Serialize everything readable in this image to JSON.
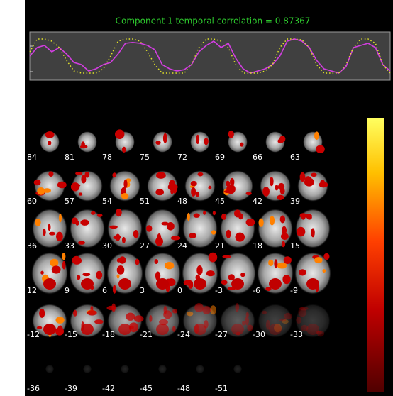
{
  "title": "Component 1 temporal correlation = 0.87367",
  "timecourse": {
    "ylim": [
      0,
      1
    ],
    "series": [
      {
        "color": "#d23ee0",
        "style": "solid",
        "values": [
          0.5,
          0.7,
          0.75,
          0.6,
          0.7,
          0.55,
          0.35,
          0.3,
          0.15,
          0.2,
          0.3,
          0.35,
          0.55,
          0.8,
          0.82,
          0.8,
          0.75,
          0.65,
          0.3,
          0.2,
          0.15,
          0.18,
          0.3,
          0.6,
          0.75,
          0.85,
          0.7,
          0.8,
          0.45,
          0.2,
          0.1,
          0.15,
          0.2,
          0.3,
          0.5,
          0.85,
          0.9,
          0.85,
          0.7,
          0.4,
          0.2,
          0.15,
          0.1,
          0.25,
          0.7,
          0.75,
          0.8,
          0.7,
          0.3,
          0.15
        ]
      },
      {
        "color": "#e4e428",
        "style": "dotted",
        "values": [
          0.6,
          0.9,
          0.9,
          0.85,
          0.7,
          0.4,
          0.15,
          0.1,
          0.1,
          0.1,
          0.2,
          0.5,
          0.85,
          0.9,
          0.9,
          0.85,
          0.6,
          0.3,
          0.1,
          0.1,
          0.1,
          0.1,
          0.3,
          0.7,
          0.9,
          0.9,
          0.85,
          0.7,
          0.3,
          0.1,
          0.1,
          0.1,
          0.15,
          0.3,
          0.7,
          0.9,
          0.9,
          0.88,
          0.7,
          0.3,
          0.1,
          0.1,
          0.1,
          0.3,
          0.7,
          0.9,
          0.9,
          0.8,
          0.3,
          0.1
        ]
      }
    ]
  },
  "slices": [
    "84",
    "81",
    "78",
    "75",
    "72",
    "69",
    "66",
    "63",
    "60",
    "57",
    "54",
    "51",
    "48",
    "45",
    "42",
    "39",
    "36",
    "33",
    "30",
    "27",
    "24",
    "21",
    "18",
    "15",
    "12",
    "9",
    "6",
    "3",
    "0",
    "-3",
    "-6",
    "-9",
    "-12",
    "-15",
    "-18",
    "-21",
    "-24",
    "-27",
    "-30",
    "-33",
    "-36",
    "-39",
    "-42",
    "-45",
    "-48",
    "-51"
  ]
}
